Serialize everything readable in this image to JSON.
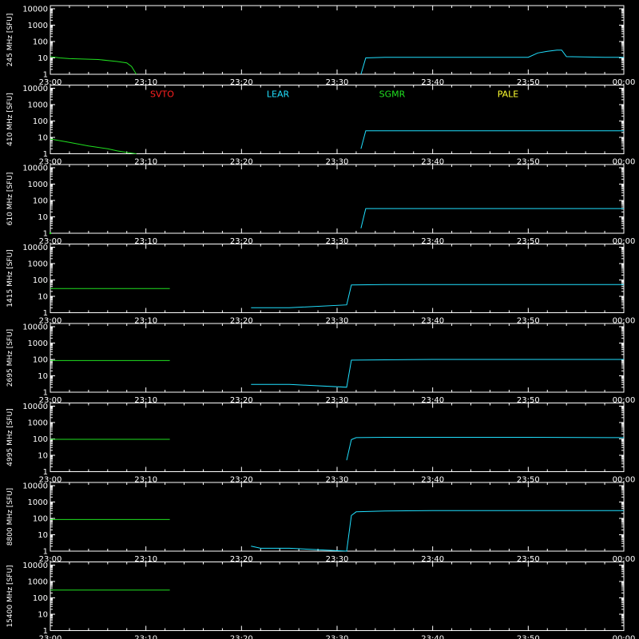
{
  "chart_data": {
    "type": "line",
    "time_ticks": [
      "23:00",
      "23:10",
      "23:20",
      "23:30",
      "23:40",
      "23:50",
      "00:00"
    ],
    "time_range": [
      "23:00",
      "00:00"
    ],
    "y_scale": "log",
    "y_ticks": [
      "1",
      "10",
      "100",
      "1000",
      "10000"
    ],
    "ylim": [
      1,
      10000
    ],
    "legend": [
      {
        "name": "SVTO",
        "color": "#ff2020"
      },
      {
        "name": "LEAR",
        "color": "#20e0ff"
      },
      {
        "name": "SGMR",
        "color": "#20e020"
      },
      {
        "name": "PALE",
        "color": "#ffff30"
      }
    ],
    "panels": [
      {
        "ylabel": "245 MHz [SFU]",
        "series": [
          {
            "station": "SGMR",
            "color": "#20e020",
            "points": [
              [
                "23:00",
                12
              ],
              [
                "23:01",
                10
              ],
              [
                "23:02",
                9
              ],
              [
                "23:05",
                8
              ],
              [
                "23:07",
                6
              ],
              [
                "23:08",
                5
              ],
              [
                "23:08.5",
                3
              ],
              [
                "23:09",
                1
              ]
            ]
          },
          {
            "station": "LEAR",
            "color": "#20e0ff",
            "points": [
              [
                "23:32.5",
                1
              ],
              [
                "23:33",
                10
              ],
              [
                "23:35",
                11
              ],
              [
                "23:40",
                11
              ],
              [
                "23:45",
                11
              ],
              [
                "23:50",
                11
              ],
              [
                "23:51",
                20
              ],
              [
                "23:52",
                25
              ],
              [
                "23:53",
                30
              ],
              [
                "23:53.5",
                30
              ],
              [
                "23:54",
                12
              ],
              [
                "23:58",
                11
              ],
              [
                "00:00",
                11
              ]
            ]
          }
        ]
      },
      {
        "ylabel": "410 MHz [SFU]",
        "series": [
          {
            "station": "SGMR",
            "color": "#20e020",
            "points": [
              [
                "23:00",
                8
              ],
              [
                "23:02",
                5
              ],
              [
                "23:04",
                3
              ],
              [
                "23:06",
                2
              ],
              [
                "23:07",
                1.5
              ],
              [
                "23:08",
                1.2
              ],
              [
                "23:09",
                1
              ]
            ]
          },
          {
            "station": "LEAR",
            "color": "#20e0ff",
            "points": [
              [
                "23:32.5",
                2
              ],
              [
                "23:33",
                25
              ],
              [
                "23:35",
                25
              ],
              [
                "23:40",
                25
              ],
              [
                "23:50",
                25
              ],
              [
                "00:00",
                25
              ]
            ]
          }
        ]
      },
      {
        "ylabel": "610 MHz [SFU]",
        "series": [
          {
            "station": "SGMR",
            "color": "#20e020",
            "points": [
              [
                "23:00",
                1
              ]
            ]
          },
          {
            "station": "LEAR",
            "color": "#20e0ff",
            "points": [
              [
                "23:32.5",
                2
              ],
              [
                "23:33",
                32
              ],
              [
                "23:35",
                32
              ],
              [
                "23:40",
                32
              ],
              [
                "23:50",
                32
              ],
              [
                "00:00",
                32
              ]
            ]
          }
        ]
      },
      {
        "ylabel": "1415 MHz [SFU]",
        "series": [
          {
            "station": "SGMR",
            "color": "#20e020",
            "points": [
              [
                "23:00",
                30
              ],
              [
                "23:05",
                30
              ],
              [
                "23:10",
                30
              ],
              [
                "23:12.5",
                30
              ]
            ]
          },
          {
            "station": "LEAR",
            "color": "#20e0ff",
            "points": [
              [
                "23:21",
                2
              ],
              [
                "23:23",
                2
              ],
              [
                "23:25",
                2
              ],
              [
                "23:31",
                3
              ],
              [
                "23:31.5",
                50
              ],
              [
                "23:35",
                52
              ],
              [
                "23:40",
                52
              ],
              [
                "23:50",
                52
              ],
              [
                "00:00",
                52
              ]
            ]
          }
        ]
      },
      {
        "ylabel": "2695 MHz [SFU]",
        "series": [
          {
            "station": "SGMR",
            "color": "#20e020",
            "points": [
              [
                "23:00",
                85
              ],
              [
                "23:05",
                85
              ],
              [
                "23:10",
                85
              ],
              [
                "23:12.5",
                85
              ]
            ]
          },
          {
            "station": "LEAR",
            "color": "#20e0ff",
            "points": [
              [
                "23:21",
                3
              ],
              [
                "23:23",
                3
              ],
              [
                "23:25",
                3
              ],
              [
                "23:31",
                2
              ],
              [
                "23:31.5",
                90
              ],
              [
                "23:35",
                95
              ],
              [
                "23:40",
                100
              ],
              [
                "23:50",
                100
              ],
              [
                "00:00",
                100
              ]
            ]
          }
        ]
      },
      {
        "ylabel": "4995 MHz [SFU]",
        "series": [
          {
            "station": "SGMR",
            "color": "#20e020",
            "points": [
              [
                "23:00",
                95
              ],
              [
                "23:05",
                95
              ],
              [
                "23:10",
                95
              ],
              [
                "23:12.5",
                95
              ]
            ]
          },
          {
            "station": "LEAR",
            "color": "#20e0ff",
            "points": [
              [
                "23:31",
                5
              ],
              [
                "23:31.5",
                90
              ],
              [
                "23:32",
                120
              ],
              [
                "23:35",
                125
              ],
              [
                "23:40",
                125
              ],
              [
                "23:50",
                125
              ],
              [
                "00:00",
                120
              ]
            ]
          }
        ]
      },
      {
        "ylabel": "8800 MHz [SFU]",
        "series": [
          {
            "station": "SGMR",
            "color": "#20e020",
            "points": [
              [
                "23:00",
                85
              ],
              [
                "23:05",
                85
              ],
              [
                "23:10",
                85
              ],
              [
                "23:12.5",
                85
              ]
            ]
          },
          {
            "station": "LEAR",
            "color": "#20e0ff",
            "points": [
              [
                "23:21",
                2
              ],
              [
                "23:22",
                1.5
              ],
              [
                "23:25",
                1.5
              ],
              [
                "23:31",
                1
              ],
              [
                "23:31.5",
                150
              ],
              [
                "23:32",
                250
              ],
              [
                "23:35",
                280
              ],
              [
                "23:40",
                300
              ],
              [
                "23:50",
                300
              ],
              [
                "00:00",
                300
              ]
            ]
          }
        ]
      },
      {
        "ylabel": "15400 MHz [SFU]",
        "series": [
          {
            "station": "SGMR",
            "color": "#20e020",
            "points": [
              [
                "23:00",
                300
              ],
              [
                "23:05",
                300
              ],
              [
                "23:10",
                300
              ],
              [
                "23:12.5",
                300
              ]
            ]
          }
        ]
      }
    ]
  }
}
